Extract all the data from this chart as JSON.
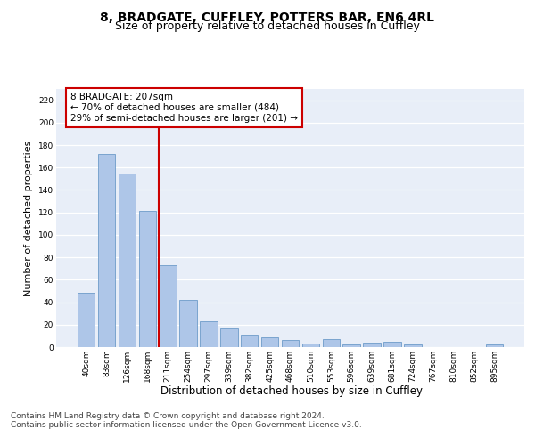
{
  "title": "8, BRADGATE, CUFFLEY, POTTERS BAR, EN6 4RL",
  "subtitle": "Size of property relative to detached houses in Cuffley",
  "xlabel": "Distribution of detached houses by size in Cuffley",
  "ylabel": "Number of detached properties",
  "categories": [
    "40sqm",
    "83sqm",
    "126sqm",
    "168sqm",
    "211sqm",
    "254sqm",
    "297sqm",
    "339sqm",
    "382sqm",
    "425sqm",
    "468sqm",
    "510sqm",
    "553sqm",
    "596sqm",
    "639sqm",
    "681sqm",
    "724sqm",
    "767sqm",
    "810sqm",
    "852sqm",
    "895sqm"
  ],
  "values": [
    48,
    172,
    155,
    121,
    73,
    42,
    23,
    17,
    11,
    9,
    6,
    3,
    7,
    2,
    4,
    5,
    2,
    0,
    0,
    0,
    2
  ],
  "bar_color": "#aec6e8",
  "bar_edge_color": "#5a8fc2",
  "vline_color": "#cc0000",
  "annotation_text": "8 BRADGATE: 207sqm\n← 70% of detached houses are smaller (484)\n29% of semi-detached houses are larger (201) →",
  "annotation_box_color": "#ffffff",
  "annotation_box_edge_color": "#cc0000",
  "ylim": [
    0,
    230
  ],
  "yticks": [
    0,
    20,
    40,
    60,
    80,
    100,
    120,
    140,
    160,
    180,
    200,
    220
  ],
  "background_color": "#e8eef8",
  "grid_color": "#ffffff",
  "footnote": "Contains HM Land Registry data © Crown copyright and database right 2024.\nContains public sector information licensed under the Open Government Licence v3.0.",
  "title_fontsize": 10,
  "subtitle_fontsize": 9,
  "xlabel_fontsize": 8.5,
  "ylabel_fontsize": 8,
  "tick_fontsize": 6.5,
  "annotation_fontsize": 7.5,
  "footnote_fontsize": 6.5
}
